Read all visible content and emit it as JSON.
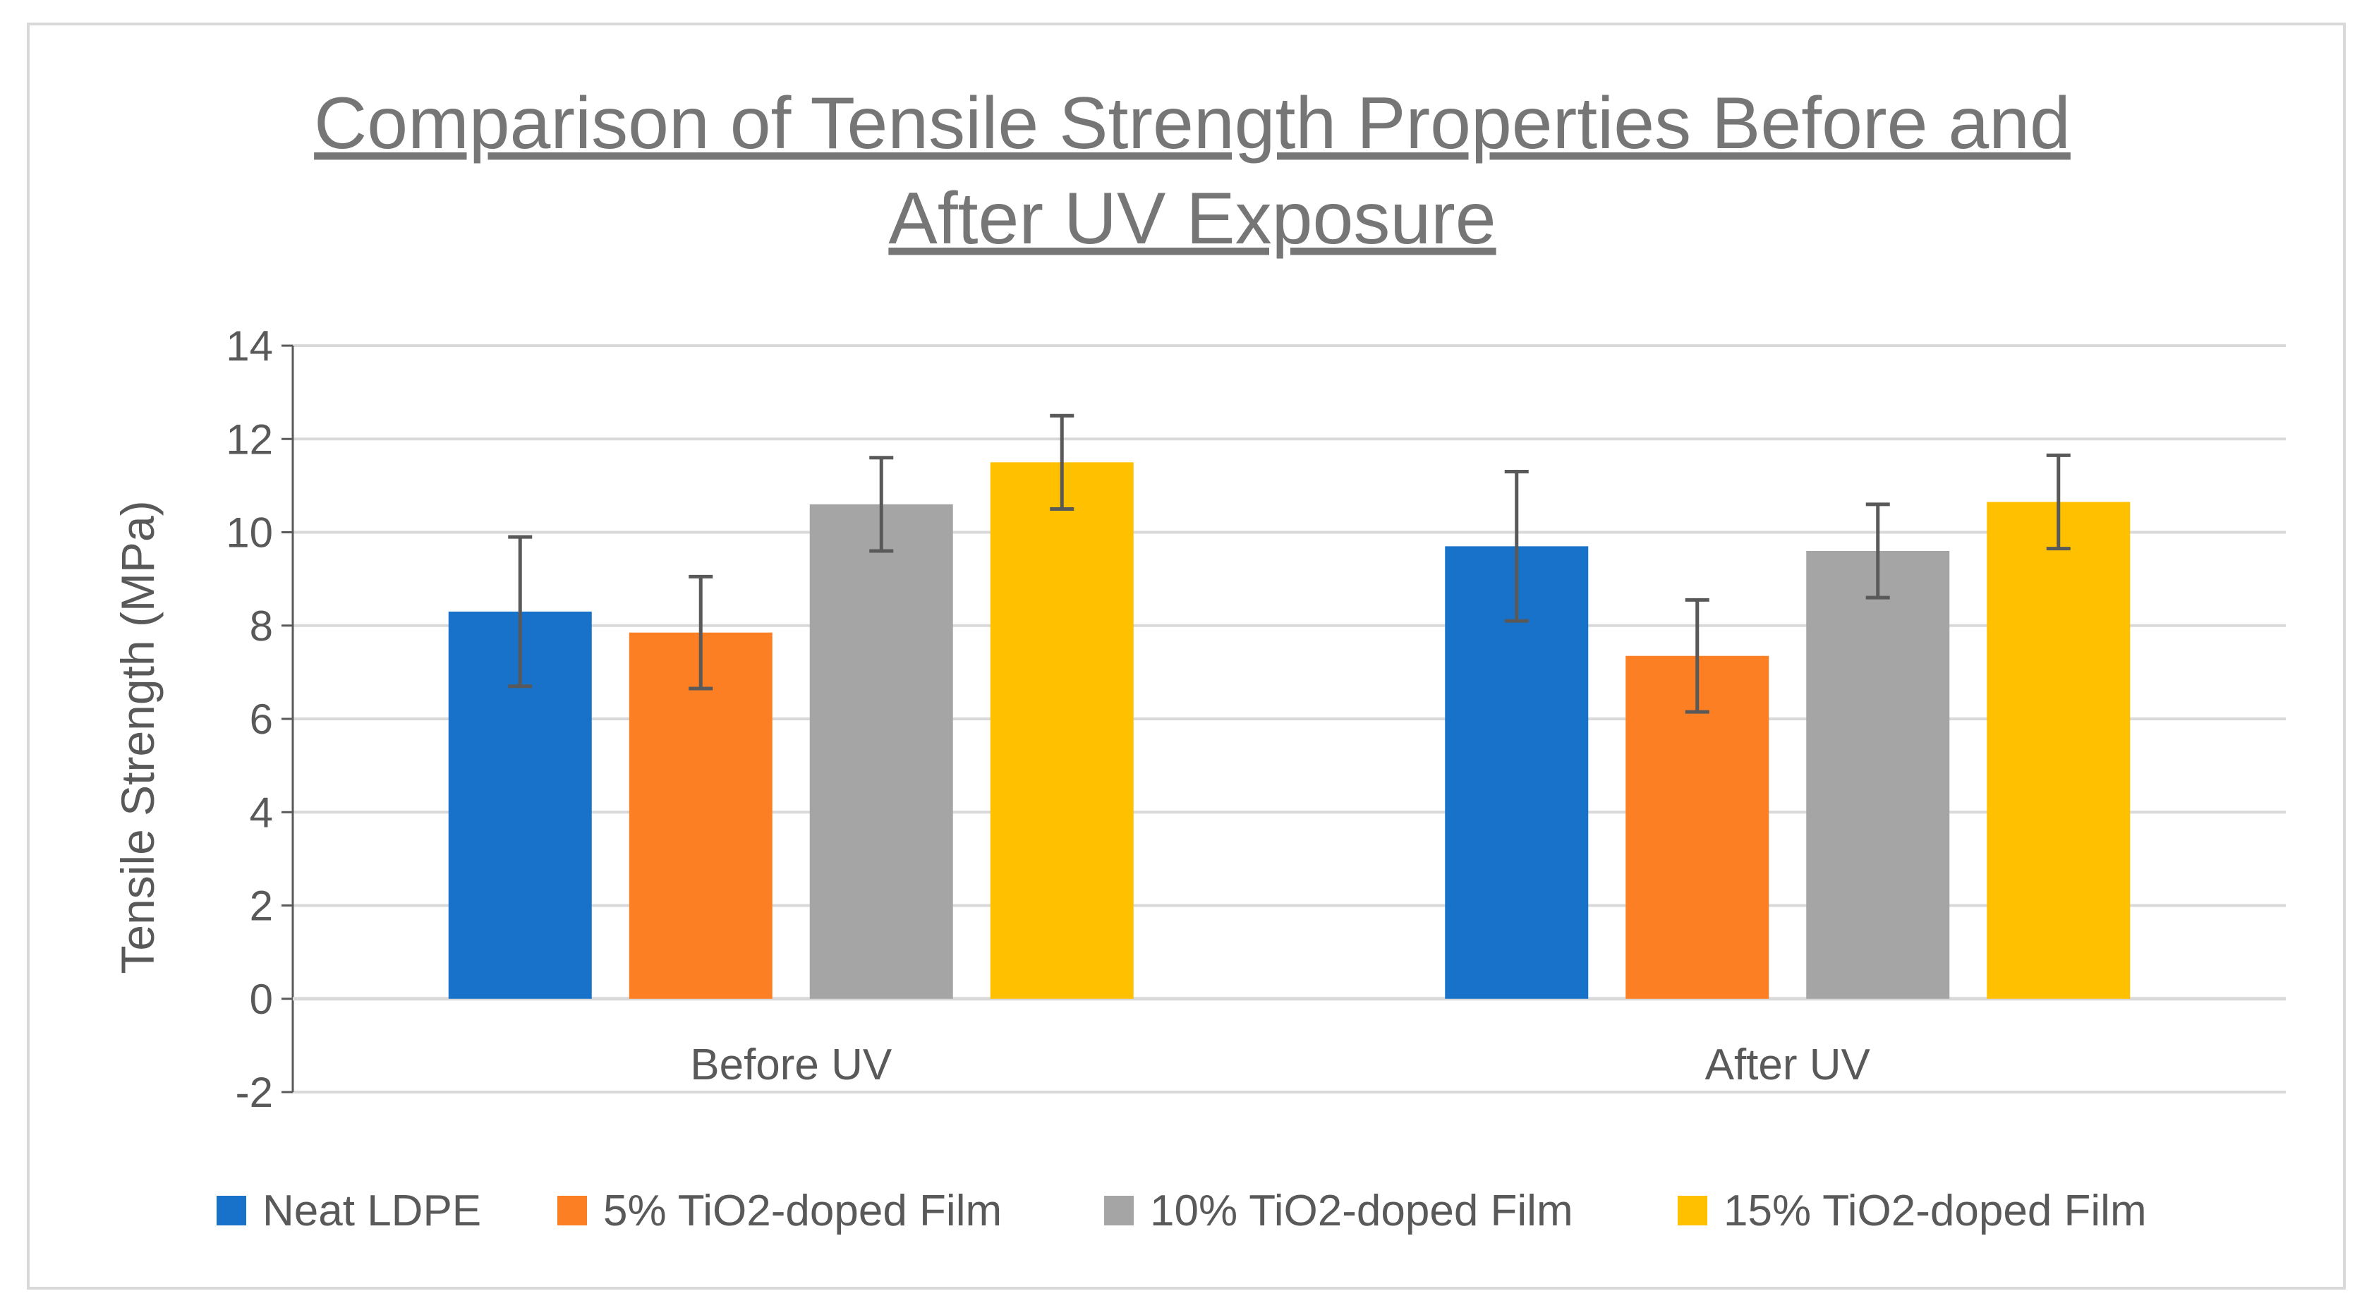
{
  "chart_data": {
    "type": "bar",
    "title_line1": "Comparison of Tensile Strength Properties Before and",
    "title_line2": "After UV Exposure",
    "ylabel": "Tensile Strength (MPa)",
    "xlabel": "",
    "ylim": [
      -2,
      14
    ],
    "yticks": [
      -2,
      0,
      2,
      4,
      6,
      8,
      10,
      12,
      14
    ],
    "grid": true,
    "legend_position": "bottom",
    "categories": [
      "Before UV",
      "After UV"
    ],
    "series": [
      {
        "name": "Neat LDPE",
        "color": "#1872c9",
        "values": [
          8.3,
          9.7
        ],
        "errors": [
          1.6,
          1.6
        ]
      },
      {
        "name": "5% TiO2-doped Film",
        "color": "#fd7f23",
        "values": [
          7.85,
          7.35
        ],
        "errors": [
          1.2,
          1.2
        ]
      },
      {
        "name": "10% TiO2-doped Film",
        "color": "#a5a5a5",
        "values": [
          10.6,
          9.6
        ],
        "errors": [
          1.0,
          1.0
        ]
      },
      {
        "name": "15% TiO2-doped Film",
        "color": "#ffc000",
        "values": [
          11.5,
          10.65
        ],
        "errors": [
          1.0,
          1.0
        ]
      }
    ]
  }
}
